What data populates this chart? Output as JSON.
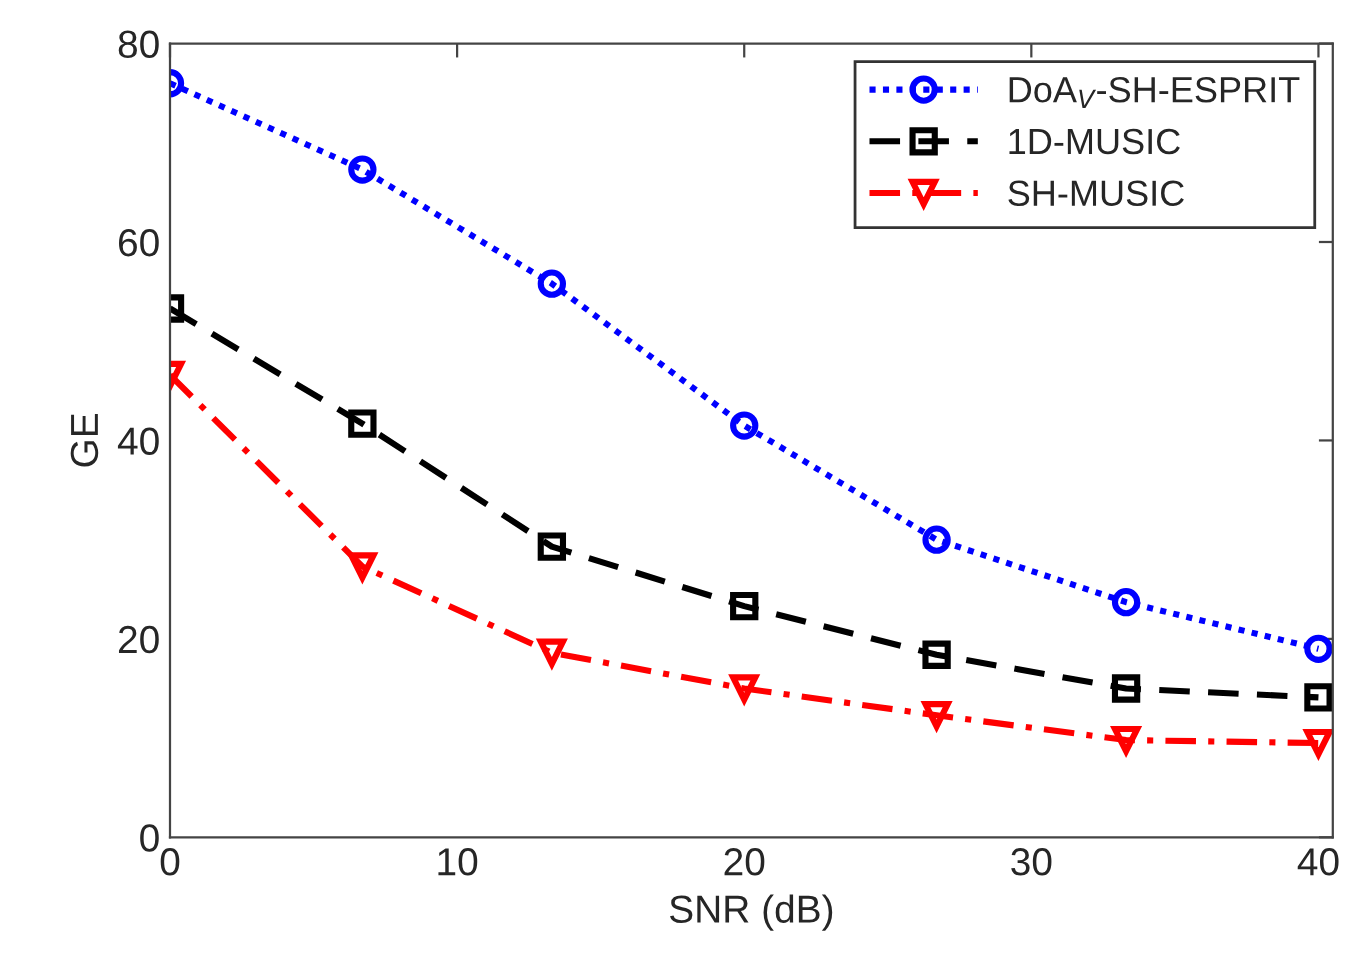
{
  "chart_data": {
    "type": "line",
    "xlabel": "SNR (dB)",
    "ylabel": "GE",
    "x": [
      0,
      6.7,
      13.3,
      20,
      26.7,
      33.3,
      40
    ],
    "series": [
      {
        "name": "DoA$_{V}$-SH-ESPRIT",
        "color": "#0000ff",
        "marker": "circle",
        "line_style": "dotted",
        "values": [
          76,
          67.3,
          55.8,
          41.5,
          30,
          23.7,
          19
        ]
      },
      {
        "name": "1D-MUSIC",
        "color": "#000000",
        "marker": "square",
        "line_style": "dashed",
        "values": [
          53.3,
          41.7,
          29.3,
          23.3,
          18.4,
          15,
          14.1
        ]
      },
      {
        "name": "SH-MUSIC",
        "color": "#ff0000",
        "marker": "triangle",
        "line_style": "dashdot",
        "values": [
          46.6,
          27.3,
          18.6,
          15,
          12.3,
          9.8,
          9.5
        ]
      }
    ],
    "xlim": [
      0,
      40.5
    ],
    "xticks": [
      0,
      10,
      20,
      30,
      40
    ],
    "ylim": [
      0,
      80
    ],
    "yticks": [
      0,
      20,
      40,
      60,
      80
    ],
    "grid": false,
    "legend": "top right"
  }
}
